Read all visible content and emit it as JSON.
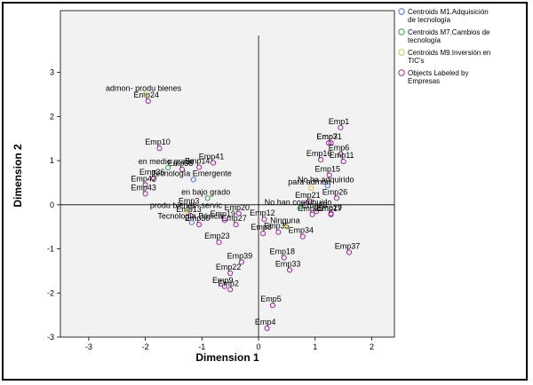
{
  "chart_data": {
    "type": "scatter",
    "xlabel": "Dimension 1",
    "ylabel": "Dimension 2",
    "xlim": [
      -3.5,
      2.4
    ],
    "ylim": [
      -3.0,
      4.4
    ],
    "xticks": [
      -3,
      -2,
      -1,
      0,
      1,
      2
    ],
    "yticks": [
      -3,
      -2,
      -1,
      0,
      1,
      2,
      3
    ],
    "grid": false,
    "reference_lines": {
      "x": 0,
      "y": 0
    },
    "legend_position": "right-outside",
    "legend": [
      {
        "label": "Centroids M1.Adquisición de tecnología",
        "color": "#4a6fd4"
      },
      {
        "label": "Centroids M7.Cambios de tecnología",
        "color": "#3aa04a"
      },
      {
        "label": "Centroids M9.Inversión en TIC's",
        "color": "#d4c25a"
      },
      {
        "label": "Objects Labeled by Empresas",
        "color": "#9c2a9c"
      }
    ],
    "centroids_m1": [
      {
        "label": "Tecnología Emergente",
        "x": -1.15,
        "y": 0.57
      },
      {
        "label": "Tecnología Básica",
        "x": -1.18,
        "y": -0.4
      },
      {
        "label": "No ha adquirido",
        "x": 1.22,
        "y": 0.43
      }
    ],
    "centroids_m7": [
      {
        "label": "en medio grado",
        "x": -1.6,
        "y": 0.84
      },
      {
        "label": "en bajo grado",
        "x": -0.9,
        "y": 0.15
      },
      {
        "label": "No han contribuido",
        "x": 0.73,
        "y": -0.08
      },
      {
        "label": "",
        "x": -1.22,
        "y": -0.07
      }
    ],
    "centroids_m9": [
      {
        "label": "admon- produ bienes",
        "x": -2.0,
        "y": 2.5
      },
      {
        "label": "produ bienes- servic",
        "x": -1.25,
        "y": -0.15
      },
      {
        "label": "para admon",
        "x": 0.93,
        "y": 0.38
      },
      {
        "label": "Ninguna",
        "x": 0.5,
        "y": -0.5
      }
    ],
    "objects": [
      {
        "label": "Emp1",
        "x": 1.45,
        "y": 1.75
      },
      {
        "label": "Emp7",
        "x": 1.24,
        "y": 1.4
      },
      {
        "label": "Emp31",
        "x": 1.28,
        "y": 1.4
      },
      {
        "label": "Emp6",
        "x": 1.45,
        "y": 1.15
      },
      {
        "label": "Emp16",
        "x": 1.1,
        "y": 1.02
      },
      {
        "label": "Emp11",
        "x": 1.5,
        "y": 0.98
      },
      {
        "label": "Emp15",
        "x": 1.25,
        "y": 0.67
      },
      {
        "label": "Emp26",
        "x": 1.38,
        "y": 0.15
      },
      {
        "label": "Emp21",
        "x": 0.9,
        "y": 0.08
      },
      {
        "label": "Emp28",
        "x": 1.02,
        "y": -0.15
      },
      {
        "label": "Emp29",
        "x": 1.28,
        "y": -0.2
      },
      {
        "label": "Emp17",
        "x": 1.28,
        "y": -0.22
      },
      {
        "label": "Emp25",
        "x": 0.95,
        "y": -0.22
      },
      {
        "label": "Emp34",
        "x": 0.78,
        "y": -0.72
      },
      {
        "label": "Emp37",
        "x": 1.6,
        "y": -1.08
      },
      {
        "label": "Emp18",
        "x": 0.45,
        "y": -1.2
      },
      {
        "label": "Emp33",
        "x": 0.55,
        "y": -1.48
      },
      {
        "label": "Emp35",
        "x": 0.35,
        "y": -0.62
      },
      {
        "label": "Emp12",
        "x": 0.1,
        "y": -0.33
      },
      {
        "label": "Emp8",
        "x": 0.08,
        "y": -0.65
      },
      {
        "label": "Emp5",
        "x": 0.25,
        "y": -2.28
      },
      {
        "label": "Emp4",
        "x": 0.15,
        "y": -2.8
      },
      {
        "label": "Emp2",
        "x": -0.5,
        "y": -1.92
      },
      {
        "label": "Emp9",
        "x": -0.6,
        "y": -1.85
      },
      {
        "label": "Emp22",
        "x": -0.5,
        "y": -1.55
      },
      {
        "label": "Emp39",
        "x": -0.3,
        "y": -1.3
      },
      {
        "label": "Emp23",
        "x": -0.7,
        "y": -0.85
      },
      {
        "label": "Emp27",
        "x": -0.4,
        "y": -0.45
      },
      {
        "label": "Emp19",
        "x": -0.6,
        "y": -0.35
      },
      {
        "label": "Emp20",
        "x": -0.35,
        "y": -0.2
      },
      {
        "label": "Emp30",
        "x": -1.05,
        "y": -0.45
      },
      {
        "label": "Emp13",
        "x": -1.2,
        "y": -0.25
      },
      {
        "label": "Emp3",
        "x": -1.2,
        "y": -0.05
      },
      {
        "label": "Emp14",
        "x": -1.05,
        "y": 0.85
      },
      {
        "label": "Emp38",
        "x": -1.35,
        "y": 0.8
      },
      {
        "label": "Emp41",
        "x": -0.8,
        "y": 0.95
      },
      {
        "label": "Emp10",
        "x": -1.75,
        "y": 1.28
      },
      {
        "label": "Emp36",
        "x": -1.85,
        "y": 0.6
      },
      {
        "label": "Emp42",
        "x": -2.0,
        "y": 0.45
      },
      {
        "label": "Emp43",
        "x": -2.0,
        "y": 0.25
      },
      {
        "label": "Emp24",
        "x": -1.95,
        "y": 2.35
      }
    ]
  }
}
